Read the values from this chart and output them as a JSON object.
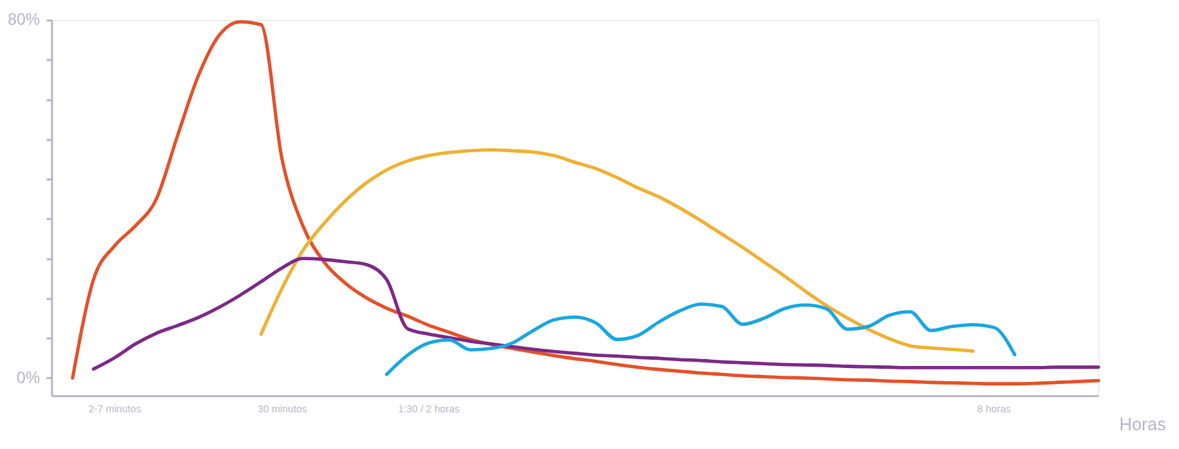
{
  "chart_data": {
    "type": "line",
    "xlabel": "Horas",
    "categories": [
      null,
      null,
      null,
      "2-7 minutos",
      null,
      null,
      null,
      null,
      null,
      null,
      null,
      "30 minutos",
      null,
      null,
      null,
      null,
      null,
      null,
      "1:30 / 2 horas",
      null,
      null,
      null,
      null,
      null,
      null,
      null,
      null,
      null,
      null,
      null,
      null,
      null,
      null,
      null,
      null,
      null,
      null,
      null,
      null,
      null,
      null,
      null,
      null,
      null,
      null,
      "8 horas",
      null,
      null,
      null,
      null,
      null
    ],
    "ylim": [
      -4,
      80
    ],
    "yticks": [
      {
        "value": 0,
        "label": "0%"
      },
      {
        "value": 8.89,
        "label": null
      },
      {
        "value": 17.78,
        "label": null
      },
      {
        "value": 26.67,
        "label": null
      },
      {
        "value": 35.56,
        "label": null
      },
      {
        "value": 44.44,
        "label": null
      },
      {
        "value": 53.33,
        "label": null
      },
      {
        "value": 62.22,
        "label": null
      },
      {
        "value": 71.11,
        "label": null
      },
      {
        "value": 80,
        "label": "80%"
      }
    ],
    "grid": false,
    "marker": "none",
    "line_style": "solid",
    "series": [
      {
        "color": "#e4522a",
        "values": [
          null,
          0,
          22,
          29.5,
          34,
          40,
          54,
          67.5,
          76.6,
          79.6,
          79,
          49,
          34,
          26,
          21.3,
          18,
          15.6,
          13.8,
          11.8,
          10.2,
          8.6,
          7.5,
          6.6,
          5.8,
          5,
          4.3,
          3.7,
          3,
          2.4,
          1.9,
          1.5,
          1.1,
          0.8,
          0.5,
          0.3,
          0.1,
          0,
          -0.2,
          -0.4,
          -0.5,
          -0.7,
          -0.8,
          -1,
          -1.1,
          -1.2,
          -1.3,
          -1.3,
          -1.2,
          -1,
          -0.8,
          -0.6
        ]
      },
      {
        "color": "#f0b033",
        "values": [
          null,
          null,
          null,
          null,
          null,
          null,
          null,
          null,
          null,
          null,
          9.8,
          20,
          28.5,
          34.5,
          39.5,
          43.5,
          46.5,
          48.5,
          49.7,
          50.4,
          50.8,
          51,
          50.8,
          50.5,
          49.7,
          48.2,
          46.8,
          44.8,
          42.5,
          40.5,
          38,
          35.2,
          32.2,
          29.2,
          26,
          22.8,
          19.4,
          16.2,
          13.4,
          10.9,
          8.8,
          7.2,
          6.7,
          6.4,
          6.0,
          null,
          null,
          null,
          null,
          null,
          null
        ]
      },
      {
        "color": "#7d2a88",
        "values": [
          null,
          null,
          2.0,
          4.5,
          7.6,
          10,
          11.7,
          13.5,
          15.8,
          18.5,
          21.5,
          24.6,
          26.7,
          26.5,
          26,
          25.4,
          22,
          11,
          9.8,
          9,
          8.2,
          7.6,
          7,
          6.4,
          5.9,
          5.5,
          5.1,
          4.9,
          4.6,
          4.4,
          4.1,
          3.9,
          3.6,
          3.4,
          3.2,
          3,
          2.9,
          2.8,
          2.6,
          2.5,
          2.4,
          2.3,
          2.3,
          2.3,
          2.3,
          2.3,
          2.3,
          2.3,
          2.4,
          2.4,
          2.4
        ]
      },
      {
        "color": "#1aa7df",
        "values": [
          null,
          null,
          null,
          null,
          null,
          null,
          null,
          null,
          null,
          null,
          null,
          null,
          null,
          null,
          null,
          null,
          0.8,
          5.1,
          7.8,
          8.5,
          6.3,
          6.6,
          7.8,
          10.6,
          13,
          13.6,
          12.3,
          8.6,
          9.5,
          12.5,
          15,
          16.5,
          16,
          12,
          13.3,
          15.5,
          16.3,
          15.5,
          10.9,
          11.5,
          14,
          14.8,
          10.6,
          11.5,
          11.9,
          11.3,
          5.2,
          null,
          null,
          null,
          null
        ]
      }
    ]
  }
}
